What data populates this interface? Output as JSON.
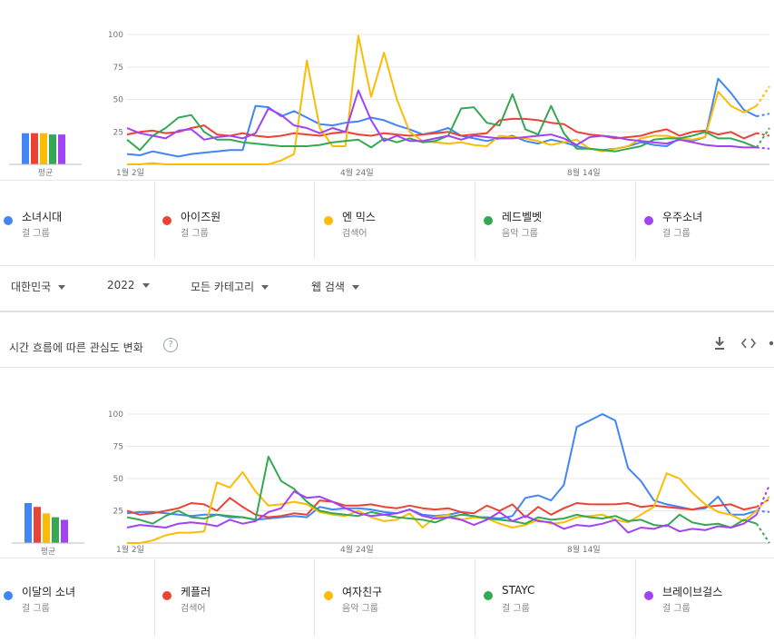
{
  "colors": {
    "blue": "#4285f4",
    "red": "#ea4335",
    "yellow": "#fbbc04",
    "green": "#34a853",
    "purple": "#a142f4"
  },
  "filters": {
    "region": "대한민국",
    "year": "2022",
    "category": "모든 카테고리",
    "search_type": "웹 검색"
  },
  "section2": {
    "title": "시간 흐름에 따른 관심도 변화",
    "help": "?",
    "download_icon": "download-icon",
    "embed_icon": "code-icon",
    "share_icon": "share-icon"
  },
  "chart1": {
    "avg_label": "평균",
    "legend": [
      {
        "name": "소녀시대",
        "sub": "걸 그룹",
        "color": "#4285f4"
      },
      {
        "name": "아이즈원",
        "sub": "걸 그룹",
        "color": "#ea4335"
      },
      {
        "name": "엔 믹스",
        "sub": "검색어",
        "color": "#fbbc04"
      },
      {
        "name": "레드벨벳",
        "sub": "음악 그룹",
        "color": "#34a853"
      },
      {
        "name": "우주소녀",
        "sub": "걸 그룹",
        "color": "#a142f4"
      }
    ]
  },
  "chart2": {
    "avg_label": "평균",
    "legend": [
      {
        "name": "이달의 소녀",
        "sub": "걸 그룹",
        "color": "#4285f4"
      },
      {
        "name": "케플러",
        "sub": "검색어",
        "color": "#ea4335"
      },
      {
        "name": "여자친구",
        "sub": "음악 그룹",
        "color": "#fbbc04"
      },
      {
        "name": "STAYC",
        "sub": "걸 그룹",
        "color": "#34a853"
      },
      {
        "name": "브레이브걸스",
        "sub": "걸 그룹",
        "color": "#a142f4"
      }
    ]
  },
  "chart_data": [
    {
      "type": "line",
      "x_ticks": [
        "1월 2일",
        "4월 24일",
        "8월 14일"
      ],
      "y_ticks": [
        25,
        50,
        75,
        100
      ],
      "ylim": [
        0,
        100
      ],
      "grid": true,
      "averages": [
        24,
        24,
        24,
        23,
        23
      ],
      "series": [
        {
          "name": "소녀시대",
          "color": "#4285f4",
          "values": [
            8,
            7,
            10,
            8,
            6,
            8,
            9,
            10,
            11,
            11,
            45,
            44,
            37,
            41,
            36,
            31,
            30,
            32,
            33,
            36,
            34,
            30,
            27,
            23,
            25,
            28,
            22,
            20,
            18,
            20,
            22,
            18,
            16,
            19,
            17,
            14,
            12,
            11,
            12,
            14,
            17,
            15,
            14,
            20,
            18,
            21,
            66,
            55,
            42,
            37,
            39
          ]
        },
        {
          "name": "아이즈원",
          "color": "#ea4335",
          "values": [
            23,
            25,
            26,
            24,
            25,
            28,
            30,
            23,
            22,
            24,
            22,
            21,
            22,
            24,
            23,
            22,
            24,
            25,
            23,
            22,
            24,
            23,
            22,
            23,
            24,
            25,
            22,
            23,
            24,
            34,
            35,
            35,
            34,
            32,
            31,
            25,
            23,
            22,
            20,
            21,
            22,
            25,
            27,
            22,
            25,
            26,
            23,
            25,
            20,
            24,
            22
          ]
        },
        {
          "name": "엔 믹스",
          "color": "#fbbc04",
          "values": [
            0,
            0,
            1,
            0,
            0,
            0,
            0,
            0,
            0,
            0,
            0,
            0,
            3,
            8,
            80,
            28,
            14,
            14,
            99,
            52,
            86,
            50,
            25,
            18,
            17,
            16,
            17,
            15,
            14,
            22,
            21,
            20,
            18,
            15,
            17,
            19,
            12,
            10,
            12,
            14,
            20,
            22,
            22,
            20,
            19,
            21,
            56,
            45,
            40,
            45,
            60
          ]
        },
        {
          "name": "레드벨벳",
          "color": "#34a853",
          "values": [
            19,
            11,
            22,
            28,
            36,
            38,
            25,
            19,
            19,
            17,
            16,
            15,
            14,
            14,
            14,
            15,
            17,
            18,
            19,
            13,
            20,
            17,
            20,
            17,
            18,
            22,
            43,
            44,
            32,
            30,
            54,
            27,
            23,
            45,
            24,
            12,
            12,
            11,
            10,
            12,
            14,
            19,
            20,
            20,
            22,
            25,
            20,
            20,
            17,
            13,
            28
          ]
        },
        {
          "name": "우주소녀",
          "color": "#a142f4",
          "values": [
            28,
            24,
            22,
            20,
            26,
            27,
            19,
            21,
            22,
            20,
            24,
            43,
            38,
            30,
            28,
            24,
            28,
            25,
            57,
            34,
            18,
            22,
            18,
            18,
            20,
            22,
            19,
            22,
            21,
            20,
            20,
            21,
            22,
            23,
            20,
            15,
            21,
            22,
            21,
            19,
            18,
            17,
            16,
            19,
            17,
            15,
            14,
            14,
            13,
            13,
            12
          ]
        }
      ]
    },
    {
      "type": "line",
      "x_ticks": [
        "1월 2일",
        "4월 24일",
        "8월 14일"
      ],
      "y_ticks": [
        25,
        50,
        75,
        100
      ],
      "ylim": [
        0,
        100
      ],
      "grid": true,
      "averages": [
        31,
        28,
        23,
        20,
        18
      ],
      "series": [
        {
          "name": "이달의 소녀",
          "color": "#4285f4",
          "values": [
            23,
            24,
            24,
            23,
            22,
            21,
            22,
            22,
            20,
            20,
            18,
            19,
            20,
            21,
            20,
            28,
            26,
            27,
            27,
            26,
            24,
            23,
            26,
            22,
            21,
            22,
            24,
            20,
            20,
            19,
            21,
            35,
            37,
            33,
            45,
            90,
            95,
            100,
            95,
            58,
            48,
            33,
            30,
            28,
            26,
            27,
            36,
            22,
            22,
            25,
            24
          ]
        },
        {
          "name": "케플러",
          "color": "#ea4335",
          "values": [
            25,
            22,
            23,
            25,
            27,
            31,
            30,
            25,
            35,
            28,
            22,
            20,
            21,
            23,
            22,
            33,
            32,
            29,
            29,
            30,
            28,
            27,
            29,
            27,
            26,
            27,
            24,
            23,
            29,
            25,
            30,
            20,
            28,
            22,
            27,
            31,
            30,
            30,
            30,
            31,
            28,
            29,
            28,
            27,
            26,
            28,
            29,
            30,
            26,
            28,
            34
          ]
        },
        {
          "name": "여자친구",
          "color": "#fbbc04",
          "values": [
            0,
            0,
            2,
            6,
            8,
            8,
            9,
            47,
            43,
            55,
            40,
            29,
            30,
            32,
            30,
            24,
            22,
            21,
            25,
            20,
            17,
            18,
            23,
            12,
            20,
            22,
            18,
            20,
            19,
            15,
            12,
            14,
            18,
            15,
            16,
            20,
            21,
            22,
            18,
            16,
            22,
            28,
            54,
            50,
            39,
            30,
            24,
            22,
            17,
            25,
            36
          ]
        },
        {
          "name": "STAYC",
          "color": "#34a853",
          "values": [
            20,
            18,
            15,
            21,
            25,
            20,
            19,
            22,
            21,
            20,
            18,
            67,
            48,
            42,
            32,
            25,
            23,
            22,
            21,
            24,
            22,
            20,
            19,
            18,
            16,
            20,
            22,
            21,
            19,
            18,
            17,
            15,
            20,
            18,
            19,
            22,
            20,
            19,
            21,
            17,
            18,
            14,
            13,
            22,
            16,
            14,
            15,
            12,
            18,
            15,
            0
          ]
        },
        {
          "name": "브레이브걸스",
          "color": "#a142f4",
          "values": [
            12,
            14,
            13,
            12,
            15,
            16,
            15,
            13,
            18,
            15,
            17,
            24,
            27,
            40,
            35,
            36,
            32,
            27,
            23,
            21,
            22,
            23,
            26,
            21,
            19,
            20,
            18,
            14,
            18,
            24,
            17,
            21,
            17,
            16,
            11,
            14,
            13,
            15,
            18,
            8,
            12,
            11,
            14,
            9,
            11,
            10,
            13,
            12,
            15,
            22,
            45
          ]
        }
      ]
    }
  ]
}
